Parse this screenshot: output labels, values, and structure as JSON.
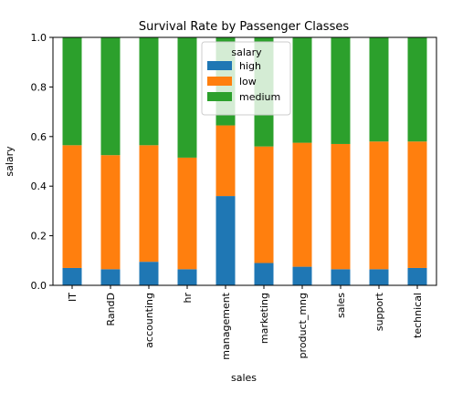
{
  "chart_data": {
    "type": "bar",
    "stacked": true,
    "title": "Survival Rate by Passenger Classes",
    "xlabel": "sales",
    "ylabel": "salary",
    "ylim": [
      0,
      1.0
    ],
    "yticks": [
      0.0,
      0.2,
      0.4,
      0.6,
      0.8,
      1.0
    ],
    "ytick_labels": [
      "0.0",
      "0.2",
      "0.4",
      "0.6",
      "0.8",
      "1.0"
    ],
    "categories": [
      "IT",
      "RandD",
      "accounting",
      "hr",
      "management",
      "marketing",
      "product_mng",
      "sales",
      "support",
      "technical"
    ],
    "series": [
      {
        "name": "high",
        "color": "#1f77b4",
        "values": [
          0.07,
          0.065,
          0.095,
          0.065,
          0.36,
          0.09,
          0.075,
          0.065,
          0.065,
          0.07
        ]
      },
      {
        "name": "low",
        "color": "#ff7f0e",
        "values": [
          0.495,
          0.46,
          0.47,
          0.45,
          0.285,
          0.47,
          0.5,
          0.505,
          0.515,
          0.51
        ]
      },
      {
        "name": "medium",
        "color": "#2ca02c",
        "values": [
          0.435,
          0.475,
          0.435,
          0.485,
          0.355,
          0.44,
          0.425,
          0.43,
          0.42,
          0.42
        ]
      }
    ],
    "legend": {
      "title": "salary",
      "placement": "top-center"
    },
    "grid": false
  }
}
